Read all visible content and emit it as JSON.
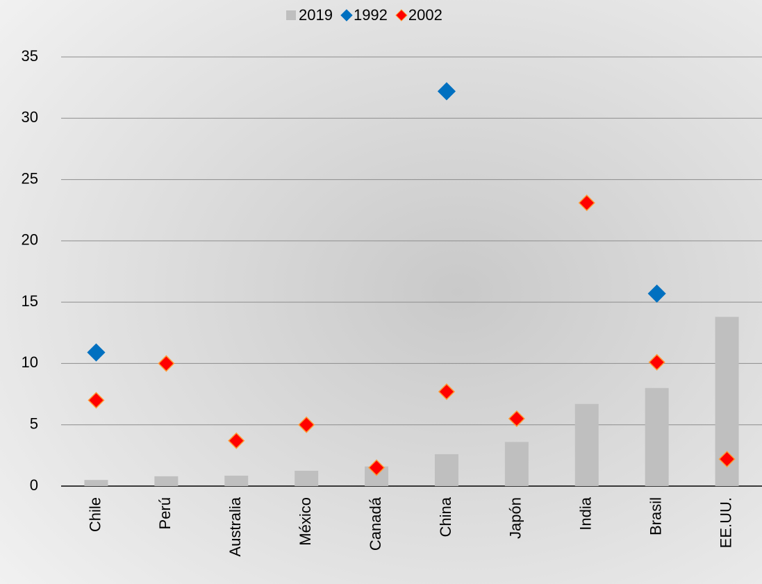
{
  "chart_data": {
    "type": "bar",
    "categories": [
      "Chile",
      "Perú",
      "Australia",
      "México",
      "Canadá",
      "China",
      "Japón",
      "India",
      "Brasil",
      "EE.UU."
    ],
    "series": [
      {
        "name": "2019",
        "type": "bar",
        "color": "#bfbfbf",
        "values": [
          0.5,
          0.8,
          0.85,
          1.25,
          1.6,
          2.6,
          3.6,
          6.7,
          8.0,
          13.8
        ]
      },
      {
        "name": "1992",
        "type": "scatter",
        "color": "#0070c0",
        "values": [
          10.9,
          null,
          null,
          null,
          null,
          32.2,
          null,
          null,
          15.7,
          null
        ]
      },
      {
        "name": "2002",
        "type": "scatter",
        "color": "#ff0000",
        "values": [
          7.0,
          10.0,
          3.7,
          5.0,
          1.5,
          7.7,
          5.5,
          23.1,
          10.1,
          2.2
        ]
      }
    ],
    "ylim": [
      0,
      35
    ],
    "yticks": [
      0,
      5,
      10,
      15,
      20,
      25,
      30,
      35
    ],
    "grid": true,
    "legend": "top"
  }
}
